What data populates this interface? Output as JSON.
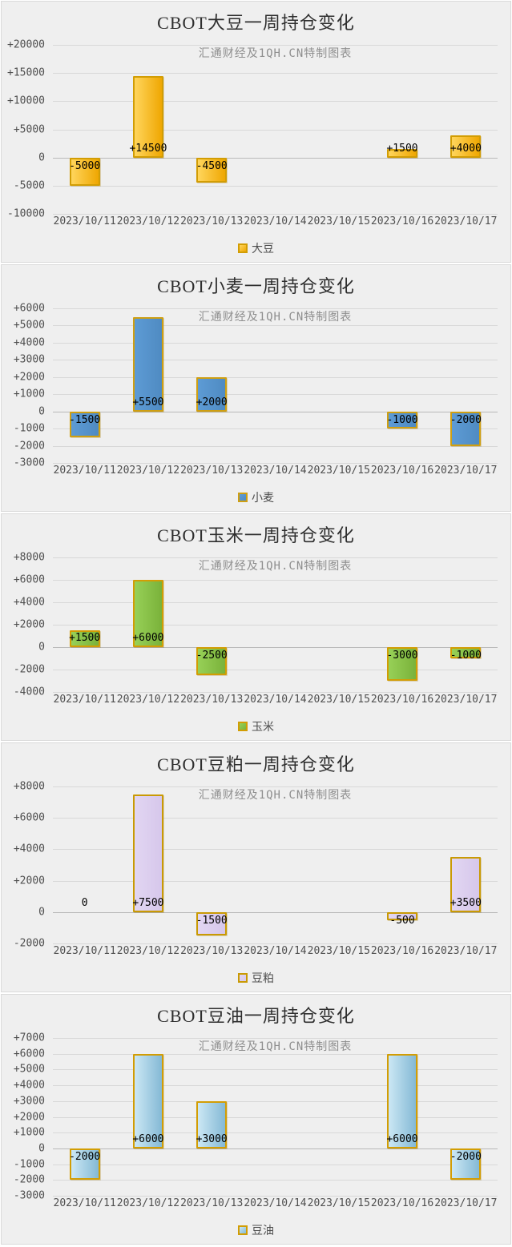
{
  "page": {
    "background": "#ffffff",
    "panel_background": "#efefef",
    "gridline_color": "#d8d8d8",
    "zero_line_color": "#b9b9b9"
  },
  "chart_data": [
    {
      "type": "bar",
      "title": "CBOT大豆一周持仓变化",
      "subtitle": "汇通财经及1QH.CN特制图表",
      "legend": "大豆",
      "legend_position": "bottom",
      "grid": true,
      "categories": [
        "2023/10/11",
        "2023/10/12",
        "2023/10/13",
        "2023/10/14",
        "2023/10/15",
        "2023/10/16",
        "2023/10/17"
      ],
      "values": [
        -5000,
        14500,
        -4500,
        null,
        null,
        1500,
        4000
      ],
      "labels": [
        "-5000",
        "+14500",
        "-4500",
        null,
        null,
        "+1500",
        "+4000"
      ],
      "ylim": [
        -10000,
        20000
      ],
      "ytick_step": 5000,
      "yticks": [
        "+20000",
        "+15000",
        "+10000",
        "+5000",
        "0",
        "-5000",
        "-10000"
      ],
      "colors": {
        "fill_light": "#ffd55c",
        "fill_dark": "#efa702",
        "border": "#d29d04"
      }
    },
    {
      "type": "bar",
      "title": "CBOT小麦一周持仓变化",
      "subtitle": "汇通财经及1QH.CN特制图表",
      "legend": "小麦",
      "legend_position": "bottom",
      "grid": true,
      "categories": [
        "2023/10/11",
        "2023/10/12",
        "2023/10/13",
        "2023/10/14",
        "2023/10/15",
        "2023/10/16",
        "2023/10/17"
      ],
      "values": [
        -1500,
        5500,
        2000,
        null,
        null,
        -1000,
        -2000
      ],
      "labels": [
        "-1500",
        "+5500",
        "+2000",
        null,
        null,
        "-1000",
        "-2000"
      ],
      "ylim": [
        -3000,
        6000
      ],
      "ytick_step": 1000,
      "yticks": [
        "+6000",
        "+5000",
        "+4000",
        "+3000",
        "+2000",
        "+1000",
        "0",
        "-1000",
        "-2000",
        "-3000"
      ],
      "colors": {
        "fill_light": "#5d9bd5",
        "fill_dark": "#4f8bc2",
        "border": "#cf9f12"
      }
    },
    {
      "type": "bar",
      "title": "CBOT玉米一周持仓变化",
      "subtitle": "汇通财经及1QH.CN特制图表",
      "legend": "玉米",
      "legend_position": "bottom",
      "grid": true,
      "categories": [
        "2023/10/11",
        "2023/10/12",
        "2023/10/13",
        "2023/10/14",
        "2023/10/15",
        "2023/10/16",
        "2023/10/17"
      ],
      "values": [
        1500,
        6000,
        -2500,
        null,
        null,
        -3000,
        -1000
      ],
      "labels": [
        "+1500",
        "+6000",
        "-2500",
        null,
        null,
        "-3000",
        "-1000"
      ],
      "ylim": [
        -4000,
        8000
      ],
      "ytick_step": 2000,
      "yticks": [
        "+8000",
        "+6000",
        "+4000",
        "+2000",
        "0",
        "-2000",
        "-4000"
      ],
      "colors": {
        "fill_light": "#97d057",
        "fill_dark": "#7ab23a",
        "border": "#d29d04"
      }
    },
    {
      "type": "bar",
      "title": "CBOT豆粕一周持仓变化",
      "subtitle": "汇通财经及1QH.CN特制图表",
      "legend": "豆粕",
      "legend_position": "bottom",
      "grid": true,
      "categories": [
        "2023/10/11",
        "2023/10/12",
        "2023/10/13",
        "2023/10/14",
        "2023/10/15",
        "2023/10/16",
        "2023/10/17"
      ],
      "values": [
        0,
        7500,
        -1500,
        null,
        null,
        -500,
        3500
      ],
      "labels": [
        "0",
        "+7500",
        "-1500",
        null,
        null,
        "-500",
        "+3500"
      ],
      "ylim": [
        -2000,
        8000
      ],
      "ytick_step": 2000,
      "yticks": [
        "+8000",
        "+6000",
        "+4000",
        "+2000",
        "0",
        "-2000"
      ],
      "colors": {
        "fill_light": "#e2d6f2",
        "fill_dark": "#d6c7eb",
        "border": "#c99a04"
      }
    },
    {
      "type": "bar",
      "title": "CBOT豆油一周持仓变化",
      "subtitle": "汇通财经及1QH.CN特制图表",
      "legend": "豆油",
      "legend_position": "bottom",
      "grid": true,
      "categories": [
        "2023/10/11",
        "2023/10/12",
        "2023/10/13",
        "2023/10/14",
        "2023/10/15",
        "2023/10/16",
        "2023/10/17"
      ],
      "values": [
        -2000,
        6000,
        3000,
        null,
        null,
        6000,
        -2000
      ],
      "labels": [
        "-2000",
        "+6000",
        "+3000",
        null,
        null,
        "+6000",
        "-2000"
      ],
      "ylim": [
        -3000,
        7000
      ],
      "ytick_step": 1000,
      "yticks": [
        "+7000",
        "+6000",
        "+5000",
        "+4000",
        "+3000",
        "+2000",
        "+1000",
        "0",
        "-1000",
        "-2000",
        "-3000"
      ],
      "colors": {
        "fill_light": "#cbe7f4",
        "fill_dark": "#84b9d5",
        "border": "#d29d04"
      }
    }
  ]
}
